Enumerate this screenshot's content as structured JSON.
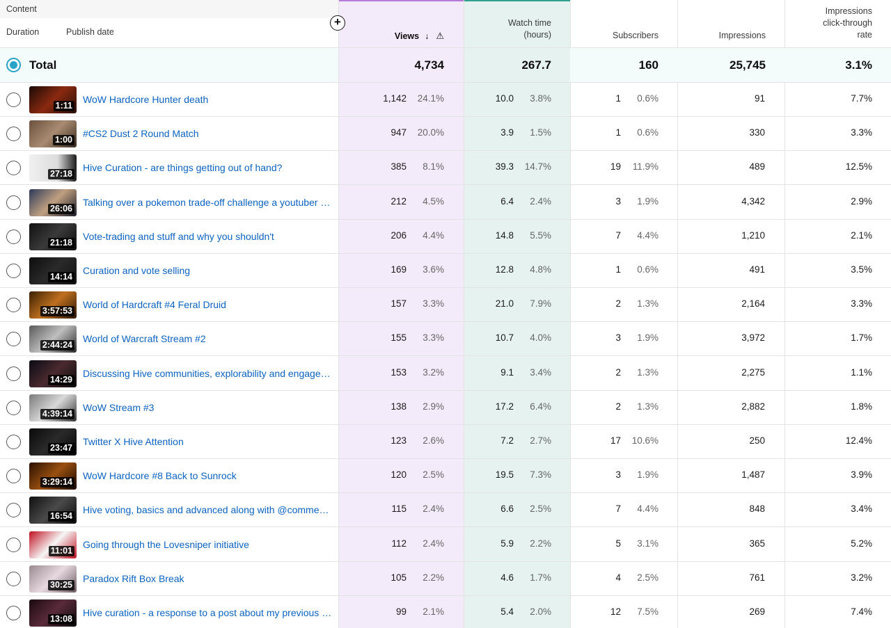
{
  "header": {
    "content_label": "Content",
    "duration_label": "Duration",
    "publish_date_label": "Publish date",
    "views_label": "Views",
    "watch_time_label_1": "Watch time",
    "watch_time_label_2": "(hours)",
    "subscribers_label": "Subscribers",
    "impressions_label": "Impressions",
    "ctr_label_1": "Impressions",
    "ctr_label_2": "click-through",
    "ctr_label_3": "rate",
    "sort_icon": "arrow-down-icon",
    "warning_icon": "warning-icon",
    "add_column_icon": "plus-circle-icon"
  },
  "total": {
    "label": "Total",
    "views": "4,734",
    "watch_time": "267.7",
    "subscribers": "160",
    "impressions": "25,745",
    "ctr": "3.1%"
  },
  "colors": {
    "views_column": "#f3ebf9",
    "watch_column": "#e5f2ef",
    "title_link": "#0b63c1",
    "selected_radio": "#2aa3c8"
  },
  "rows": [
    {
      "duration": "1:11",
      "title": "WoW Hardcore Hunter death",
      "views": "1,142",
      "views_pct": "24.1%",
      "watch": "10.0",
      "watch_pct": "3.8%",
      "subs": "1",
      "subs_pct": "0.6%",
      "impressions": "91",
      "ctr": "7.7%"
    },
    {
      "duration": "1:00",
      "title": "#CS2 Dust 2 Round Match",
      "views": "947",
      "views_pct": "20.0%",
      "watch": "3.9",
      "watch_pct": "1.5%",
      "subs": "1",
      "subs_pct": "0.6%",
      "impressions": "330",
      "ctr": "3.3%"
    },
    {
      "duration": "27:18",
      "title": "Hive Curation - are things getting out of hand?",
      "views": "385",
      "views_pct": "8.1%",
      "watch": "39.3",
      "watch_pct": "14.7%",
      "subs": "19",
      "subs_pct": "11.9%",
      "impressions": "489",
      "ctr": "12.5%"
    },
    {
      "duration": "26:06",
      "title": "Talking over a pokemon trade-off challenge a youtuber did",
      "views": "212",
      "views_pct": "4.5%",
      "watch": "6.4",
      "watch_pct": "2.4%",
      "subs": "3",
      "subs_pct": "1.9%",
      "impressions": "4,342",
      "ctr": "2.9%"
    },
    {
      "duration": "21:18",
      "title": "Vote-trading and stuff and why you shouldn't",
      "views": "206",
      "views_pct": "4.4%",
      "watch": "14.8",
      "watch_pct": "5.5%",
      "subs": "7",
      "subs_pct": "4.4%",
      "impressions": "1,210",
      "ctr": "2.1%"
    },
    {
      "duration": "14:14",
      "title": "Curation and vote selling",
      "views": "169",
      "views_pct": "3.6%",
      "watch": "12.8",
      "watch_pct": "4.8%",
      "subs": "1",
      "subs_pct": "0.6%",
      "impressions": "491",
      "ctr": "3.5%"
    },
    {
      "duration": "3:57:53",
      "title": "World of Hardcraft #4 Feral Druid",
      "views": "157",
      "views_pct": "3.3%",
      "watch": "21.0",
      "watch_pct": "7.9%",
      "subs": "2",
      "subs_pct": "1.3%",
      "impressions": "2,164",
      "ctr": "3.3%"
    },
    {
      "duration": "2:44:24",
      "title": "World of Warcraft Stream #2",
      "views": "155",
      "views_pct": "3.3%",
      "watch": "10.7",
      "watch_pct": "4.0%",
      "subs": "3",
      "subs_pct": "1.9%",
      "impressions": "3,972",
      "ctr": "1.7%"
    },
    {
      "duration": "14:29",
      "title": "Discussing Hive communities, explorability and engagement",
      "views": "153",
      "views_pct": "3.2%",
      "watch": "9.1",
      "watch_pct": "3.4%",
      "subs": "2",
      "subs_pct": "1.3%",
      "impressions": "2,275",
      "ctr": "1.1%"
    },
    {
      "duration": "4:39:14",
      "title": "WoW Stream #3",
      "views": "138",
      "views_pct": "2.9%",
      "watch": "17.2",
      "watch_pct": "6.4%",
      "subs": "2",
      "subs_pct": "1.3%",
      "impressions": "2,882",
      "ctr": "1.8%"
    },
    {
      "duration": "23:47",
      "title": "Twitter X Hive Attention",
      "views": "123",
      "views_pct": "2.6%",
      "watch": "7.2",
      "watch_pct": "2.7%",
      "subs": "17",
      "subs_pct": "10.6%",
      "impressions": "250",
      "ctr": "12.4%"
    },
    {
      "duration": "3:29:14",
      "title": "WoW Hardcore #8 Back to Sunrock",
      "views": "120",
      "views_pct": "2.5%",
      "watch": "19.5",
      "watch_pct": "7.3%",
      "subs": "3",
      "subs_pct": "1.9%",
      "impressions": "1,487",
      "ctr": "3.9%"
    },
    {
      "duration": "16:54",
      "title": "Hive voting, basics and advanced along with @comments",
      "views": "115",
      "views_pct": "2.4%",
      "watch": "6.6",
      "watch_pct": "2.5%",
      "subs": "7",
      "subs_pct": "4.4%",
      "impressions": "848",
      "ctr": "3.4%"
    },
    {
      "duration": "11:01",
      "title": "Going through the Lovesniper initiative",
      "views": "112",
      "views_pct": "2.4%",
      "watch": "5.9",
      "watch_pct": "2.2%",
      "subs": "5",
      "subs_pct": "3.1%",
      "impressions": "365",
      "ctr": "5.2%"
    },
    {
      "duration": "30:25",
      "title": "Paradox Rift Box Break",
      "views": "105",
      "views_pct": "2.2%",
      "watch": "4.6",
      "watch_pct": "1.7%",
      "subs": "4",
      "subs_pct": "2.5%",
      "impressions": "761",
      "ctr": "3.2%"
    },
    {
      "duration": "13:08",
      "title": "Hive curation - a response to a post about my previous video",
      "views": "99",
      "views_pct": "2.1%",
      "watch": "5.4",
      "watch_pct": "2.0%",
      "subs": "12",
      "subs_pct": "7.5%",
      "impressions": "269",
      "ctr": "7.4%"
    }
  ]
}
